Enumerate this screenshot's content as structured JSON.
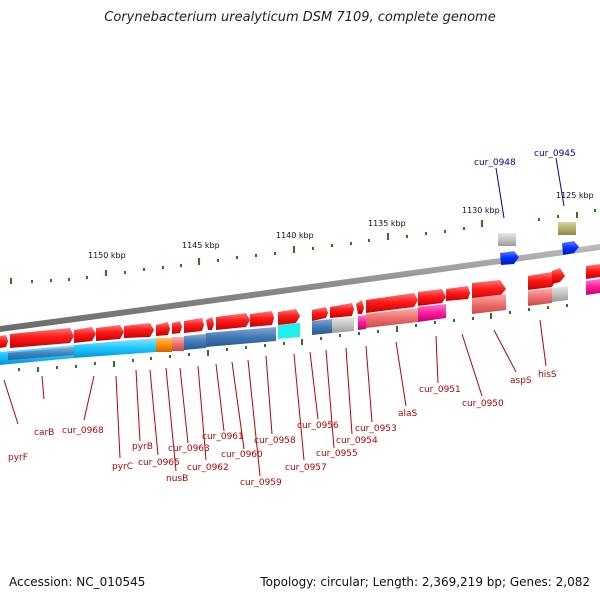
{
  "title": "Corynebacterium urealyticum DSM 7109, complete genome",
  "footer": {
    "accession": "Accession: NC_010545",
    "summary": "Topology: circular; Length: 2,369,219 bp; Genes: 2,082"
  },
  "scale": [
    "1150 kbp",
    "1145 kbp",
    "1140 kbp",
    "1135 kbp",
    "1130 kbp",
    "1125 kbp"
  ],
  "labels": {
    "pyrF": "pyrF",
    "carB": "carB",
    "cur_0968": "cur_0968",
    "pyrC": "pyrC",
    "pyrB": "pyrB",
    "cur_0965": "cur_0965",
    "nusB": "nusB",
    "cur_0963": "cur_0963",
    "cur_0962": "cur_0962",
    "cur_0961": "cur_0961",
    "cur_0960": "cur_0960",
    "cur_0959": "cur_0959",
    "cur_0958": "cur_0958",
    "cur_0957": "cur_0957",
    "cur_0956": "cur_0956",
    "cur_0955": "cur_0955",
    "cur_0954": "cur_0954",
    "cur_0953": "cur_0953",
    "alaS": "alaS",
    "cur_0951": "cur_0951",
    "cur_0950": "cur_0950",
    "aspS": "aspS",
    "hisS": "hisS",
    "cur_0948": "cur_0948",
    "cur_0945": "cur_0945"
  },
  "colors": {
    "gene_forward": "#ff1a1a",
    "gene_reverse_tint": "#ff7f7f",
    "cds_blue": "#1ec8ff",
    "cds_steel": "#3f79b8",
    "rna": "#0030ff",
    "backbone": "#888888",
    "tick": "#2a7a1a",
    "label_red": "#c00000",
    "label_blue": "#0000a0"
  }
}
